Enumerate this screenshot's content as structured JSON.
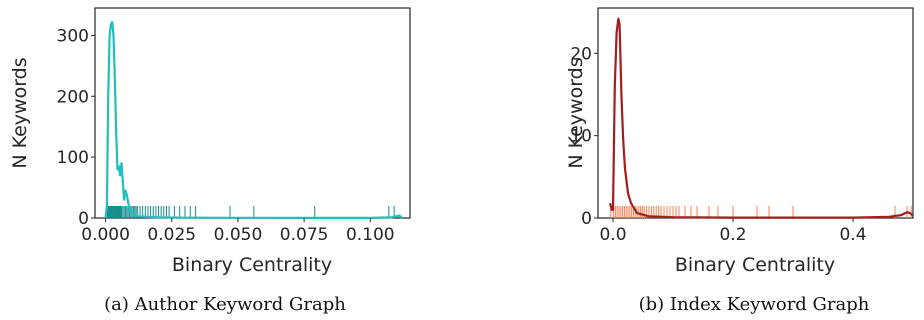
{
  "chart_data": [
    {
      "type": "line",
      "caption": "(a) Author Keyword Graph",
      "xlabel": "Binary Centrality",
      "ylabel": "N Keywords",
      "xlim": [
        -0.004,
        0.115
      ],
      "ylim": [
        0,
        345
      ],
      "xticks": [
        0.0,
        0.025,
        0.05,
        0.075,
        0.1
      ],
      "xtick_labels": [
        "0.000",
        "0.025",
        "0.050",
        "0.075",
        "0.100"
      ],
      "yticks": [
        0,
        100,
        200,
        300
      ],
      "ytick_labels": [
        "0",
        "100",
        "200",
        "300"
      ],
      "grid": false,
      "line_color": "#1fbfbf",
      "rug_color": "#138c8c",
      "series": [
        {
          "x": [
            0.0,
            0.0005,
            0.001,
            0.0015,
            0.002,
            0.0025,
            0.003,
            0.0035,
            0.004,
            0.0045,
            0.005,
            0.0055,
            0.006,
            0.0065,
            0.007,
            0.0075,
            0.008,
            0.009,
            0.01,
            0.011,
            0.012,
            0.015,
            0.02,
            0.03,
            0.05,
            0.08,
            0.1,
            0.108,
            0.11,
            0.111,
            0.112
          ],
          "y": [
            0,
            20,
            200,
            300,
            318,
            322,
            300,
            225,
            140,
            80,
            85,
            70,
            90,
            60,
            30,
            45,
            38,
            15,
            8,
            5,
            3,
            2,
            1,
            0.5,
            0.3,
            0.2,
            0.2,
            1,
            3,
            4,
            0
          ]
        }
      ],
      "rug": [
        0.0006,
        0.0009,
        0.0012,
        0.0015,
        0.0018,
        0.0021,
        0.0024,
        0.0027,
        0.003,
        0.0033,
        0.0036,
        0.0039,
        0.0042,
        0.0045,
        0.0048,
        0.0051,
        0.0054,
        0.0057,
        0.006,
        0.0065,
        0.007,
        0.0075,
        0.008,
        0.0085,
        0.009,
        0.0095,
        0.01,
        0.0105,
        0.011,
        0.0115,
        0.012,
        0.013,
        0.014,
        0.015,
        0.016,
        0.017,
        0.018,
        0.019,
        0.02,
        0.021,
        0.022,
        0.023,
        0.024,
        0.026,
        0.028,
        0.03,
        0.032,
        0.034,
        0.047,
        0.056,
        0.079,
        0.107,
        0.109
      ]
    },
    {
      "type": "line",
      "caption": "(b) Index Keyword Graph",
      "xlabel": "Binary Centrality",
      "ylabel": "N Keywords",
      "xlim": [
        -0.025,
        0.5
      ],
      "ylim": [
        0,
        25.5
      ],
      "xticks": [
        0.0,
        0.2,
        0.4
      ],
      "xtick_labels": [
        "0.0",
        "0.2",
        "0.4"
      ],
      "yticks": [
        0,
        10,
        20
      ],
      "ytick_labels": [
        "0",
        "10",
        "20"
      ],
      "grid": false,
      "line_color": "#a51e1e",
      "rug_color": "#ff7f50",
      "series": [
        {
          "x": [
            -0.005,
            -0.002,
            0.0,
            0.003,
            0.006,
            0.009,
            0.011,
            0.014,
            0.017,
            0.02,
            0.025,
            0.03,
            0.04,
            0.06,
            0.1,
            0.2,
            0.3,
            0.4,
            0.46,
            0.48,
            0.49,
            0.495,
            0.5
          ],
          "y": [
            1.8,
            1.0,
            1.0,
            16.0,
            22.5,
            24.2,
            23.5,
            15.0,
            9.5,
            6.0,
            3.0,
            1.8,
            0.6,
            0.2,
            0.1,
            0.05,
            0.05,
            0.05,
            0.15,
            0.35,
            0.7,
            0.6,
            0.3
          ]
        }
      ],
      "rug": [
        -0.004,
        0.001,
        0.004,
        0.007,
        0.01,
        0.013,
        0.016,
        0.019,
        0.022,
        0.025,
        0.028,
        0.031,
        0.034,
        0.037,
        0.04,
        0.043,
        0.046,
        0.049,
        0.052,
        0.056,
        0.06,
        0.064,
        0.068,
        0.072,
        0.076,
        0.08,
        0.085,
        0.09,
        0.095,
        0.1,
        0.105,
        0.11,
        0.12,
        0.13,
        0.14,
        0.16,
        0.175,
        0.2,
        0.24,
        0.26,
        0.3,
        0.47,
        0.49,
        0.497
      ]
    }
  ]
}
